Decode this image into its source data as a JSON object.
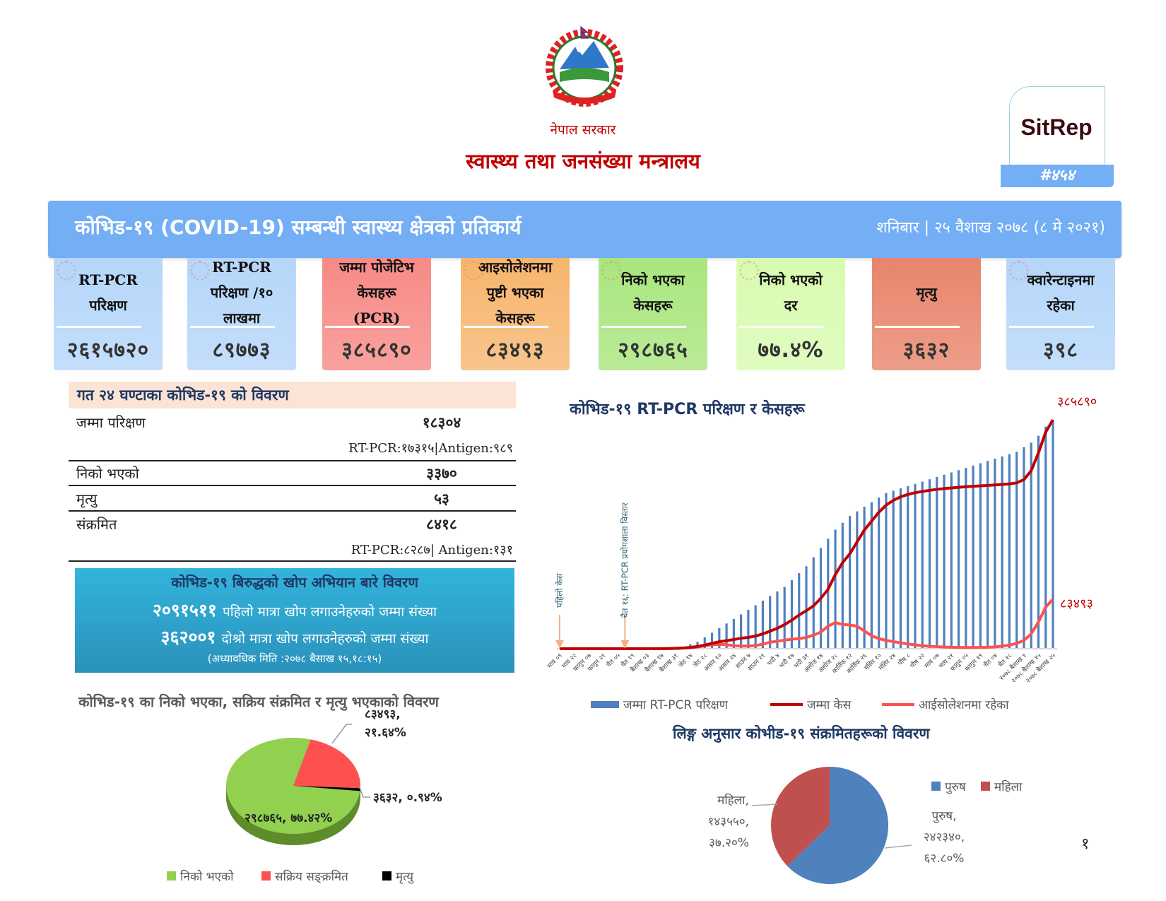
{
  "header": {
    "logo_text": "नेपाल सरकारको निशान छाप",
    "government": "नेपाल सरकार",
    "ministry": "स्वास्थ्य तथा जनसंख्या मन्त्रालय",
    "sitrep_label": "SitRep",
    "sitrep_number": "#४५४"
  },
  "banner": {
    "title": "कोभिड-१९ (COVID-19) सम्बन्धी स्वास्थ्य क्षेत्रको प्रतिकार्य",
    "date": "शनिबार | २५ वैशाख २०७८ (८ मे २०२१)",
    "color": "#74aef5"
  },
  "cards": [
    {
      "label": "RT-PCR\nपरिक्षण",
      "value": "२६१५७२०",
      "color": "#b5d6fa"
    },
    {
      "label": "RT-PCR\nपरिक्षण /१०\nलाखमा",
      "value": "८९७७३",
      "color": "#b5d6fa"
    },
    {
      "label": "जम्मा पोजेटिभ\nकेसहरू\n(PCR)",
      "value": "३८५८९०",
      "color": "#f78a86"
    },
    {
      "label": "आइसोलेशनमा\nपुष्टी भएका\nकेसहरू",
      "value": "८३४९३",
      "color": "#f7b56e"
    },
    {
      "label": "निको भएका\nकेसहरू",
      "value": "२९८७६५",
      "color": "#a9e67e"
    },
    {
      "label": "निको भएको\nदर",
      "value": "७७.४%",
      "color": "#d8fbb0"
    },
    {
      "label": "मृत्यु",
      "value": "३६३२",
      "color": "#e8856c"
    },
    {
      "label": "क्वारेन्टाइनमा\nरहेका",
      "value": "३९८",
      "color": "#b5d6fa"
    }
  ],
  "last24": {
    "title": "गत २४ घण्टाका कोभिड-१९ को विवरण",
    "rows": [
      {
        "label": "जम्मा परिक्षण",
        "value": "१८३०४",
        "sub": "RT-PCR:१७३१५|Antigen:९८९"
      },
      {
        "label": "निको भएको",
        "value": "३३७०"
      },
      {
        "label": "मृत्यु",
        "value": "५३"
      },
      {
        "label": "संक्रमित",
        "value": "८४१८",
        "sub": "RT-PCR:८२८७| Antigen:१३१"
      }
    ]
  },
  "vaccine": {
    "title": "कोभिड-१९ बिरुद्धको खोप अभियान बारे विवरण",
    "first_dose_count": "२०९१५११",
    "first_dose_label": "पहिलो मात्रा खोप लगाउनेहरुको जम्मा संख्या",
    "second_dose_count": "३६२००१",
    "second_dose_label": "दोश्रो मात्रा खोप लगाउनेहरुको जम्मा संख्या",
    "updated": "(अध्यावधिक मिति :२०७८ बैसाख १५,१८:१५)"
  },
  "page_number": "१",
  "chart_data": [
    {
      "type": "pie",
      "title": "कोभिड-१९ का निको भएका, सक्रिय संक्रमित र मृत्यु भएकाको विवरण",
      "categories": [
        "निको भएको",
        "सक्रिय सङ्क्रमित",
        "मृत्यु"
      ],
      "values": [
        298765,
        83493,
        3632
      ],
      "percent": [
        77.42,
        21.64,
        0.94
      ],
      "data_labels": [
        "२९८७६५, ७७.४२%",
        "८३४९३,\n२१.६४%",
        "३६३२, ०.९४%"
      ],
      "colors": [
        "#92d050",
        "#ff5050",
        "#000000"
      ],
      "legend": "bottom"
    },
    {
      "type": "bar+line",
      "title": "कोभिड-१९ RT-PCR परिक्षण र केसहरू",
      "x_labels": [
        "माघ ०९",
        "माघ २२",
        "फागुन ०७",
        "फागुन २१",
        "चैत ०५",
        "चैत १९",
        "बैशाख ०३",
        "बैशाख १७",
        "बैशाख ३१",
        "जेठ १४",
        "जेठ २८",
        "असार १०",
        "असार २४",
        "साउन ७",
        "साउन २१",
        "भदौ ४",
        "भदौ १७",
        "भदौ ३१",
        "असोज १४",
        "असोज २८",
        "कार्तिक १२",
        "कार्तिक २६",
        "मंसिर १०",
        "मंसिर २४",
        "पौष ८",
        "पौष २२",
        "माघ ०७",
        "माघ २१",
        "फागुन ०५",
        "फागुन १९",
        "चैत ०४",
        "चैत १८",
        "२०७८ बैशाख १",
        "२०७८ बैशाख १५",
        "२०७८ बैशाख २५"
      ],
      "label_every": 2,
      "series": [
        {
          "name": "जम्मा RT-PCR परिक्षण",
          "type": "bar",
          "axis": "primary",
          "color": "#4f81bd",
          "values": [
            0,
            0,
            0,
            0,
            0,
            0,
            0,
            0,
            0,
            0,
            0,
            0,
            0,
            0,
            0,
            0,
            0,
            0,
            52000,
            78000,
            131000,
            183000,
            235000,
            288000,
            340000,
            392000,
            445000,
            497000,
            549000,
            602000,
            654000,
            706000,
            785000,
            863000,
            942000,
            1046000,
            1151000,
            1256000,
            1360000,
            1439000,
            1517000,
            1569000,
            1622000,
            1674000,
            1726000,
            1779000,
            1805000,
            1831000,
            1857000,
            1883000,
            1909000,
            1936000,
            1962000,
            1988000,
            2014000,
            2040000,
            2066000,
            2093000,
            2119000,
            2145000,
            2171000,
            2197000,
            2223000,
            2250000,
            2302000,
            2354000,
            2433000,
            2537000,
            2615720
          ]
        },
        {
          "name": "जम्मा केस",
          "type": "line",
          "axis": "secondary",
          "color": "#c00000",
          "values": [
            1,
            1,
            1,
            1,
            1,
            1,
            1,
            5,
            9,
            14,
            31,
            49,
            57,
            82,
            134,
            300,
            603,
            1212,
            2300,
            3762,
            6211,
            9026,
            11755,
            13564,
            15491,
            17658,
            19063,
            21390,
            24957,
            29645,
            34419,
            40528,
            48138,
            56787,
            64121,
            72359,
            85000,
            100000,
            125000,
            145000,
            160000,
            180000,
            200000,
            215000,
            230000,
            242000,
            250000,
            256000,
            260000,
            263000,
            265000,
            267000,
            268500,
            270000,
            271000,
            272000,
            273000,
            273800,
            274500,
            275200,
            276000,
            276900,
            277800,
            279500,
            285000,
            300000,
            330000,
            365000,
            385890
          ]
        },
        {
          "name": "आईसोलेशनमा रहेका",
          "type": "line",
          "axis": "secondary",
          "color": "#ff5050",
          "values": [
            0,
            0,
            0,
            0,
            0,
            0,
            0,
            4,
            8,
            12,
            28,
            33,
            40,
            64,
            110,
            280,
            540,
            1000,
            1700,
            2800,
            4900,
            6500,
            7500,
            6800,
            5100,
            4500,
            4500,
            5400,
            7700,
            11000,
            12500,
            14400,
            16000,
            17000,
            19000,
            23000,
            28000,
            38000,
            44000,
            41000,
            40000,
            38000,
            30000,
            22000,
            17000,
            14000,
            12000,
            10000,
            8000,
            6500,
            5000,
            4000,
            3500,
            2800,
            2500,
            2200,
            2100,
            2100,
            2200,
            2500,
            3000,
            4500,
            6000,
            9000,
            14000,
            25000,
            45000,
            70000,
            83493
          ]
        }
      ],
      "primary_ylim": [
        0,
        2615720
      ],
      "secondary_ylim": [
        0,
        385890
      ],
      "end_labels": [
        "३८५८९०",
        "८३४९३"
      ],
      "annotations": [
        {
          "at_index": 0,
          "text": "पहिलो केस"
        },
        {
          "at_index": 9,
          "text": "चैत १६: RT-PCR प्रयोगशाला विस्तार"
        }
      ],
      "annotation_color": "#f4b183",
      "legend": "bottom",
      "grid": false
    },
    {
      "type": "pie",
      "title": "लिङ्ग अनुसार कोभीड-१९ संक्रमितहरूको विवरण",
      "categories": [
        "पुरुष",
        "महिला"
      ],
      "values": [
        242340,
        143550
      ],
      "percent": [
        62.8,
        37.2
      ],
      "data_labels": [
        "पुरुष,\n२४२३४०,\n६२.८०%",
        "महिला,\n१४३५५०,\n३७.२०%"
      ],
      "colors": [
        "#4f81bd",
        "#c0504d"
      ],
      "legend": "top-right"
    }
  ]
}
